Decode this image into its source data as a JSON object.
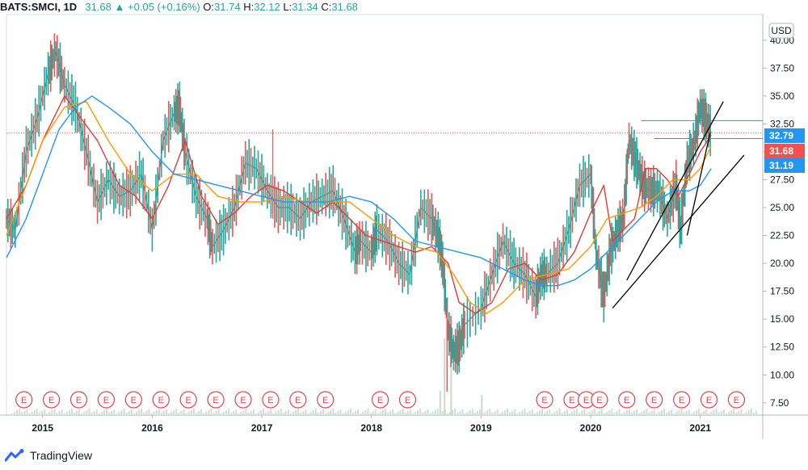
{
  "header": {
    "symbol": "BATS:SMCI, 1D",
    "last": "31.68",
    "change": "+0.05 (+0.16%)",
    "o_label": "O:",
    "o_value": "31.74",
    "h_label": "H:",
    "h_value": "32.12",
    "l_label": "L:",
    "l_value": "31.34",
    "c_label": "C:",
    "c_value": "31.68"
  },
  "footer": {
    "brand": "TradingView"
  },
  "chart_data": {
    "type": "line",
    "title": "BATS:SMCI, 1D",
    "currency": "USD",
    "y_ticks": [
      "40.00",
      "37.50",
      "35.00",
      "32.50",
      "30.00",
      "27.50",
      "25.00",
      "22.50",
      "20.00",
      "17.50",
      "15.00",
      "12.50",
      "10.00",
      "7.50"
    ],
    "ylim": [
      6.4,
      42.3
    ],
    "x_ticks": [
      "2015",
      "2016",
      "2017",
      "2018",
      "2019",
      "2020",
      "2021"
    ],
    "xlim": [
      2014.67,
      2021.57
    ],
    "price_tags": [
      {
        "label": "32.79",
        "value": 32.79,
        "color": "#2196f3"
      },
      {
        "label": "31.68",
        "value": 31.68,
        "color": "#ef5350"
      },
      {
        "label": "31.19",
        "value": 31.19,
        "color": "#2196f3"
      }
    ],
    "earnings_marker": "E",
    "earnings_dates": [
      2014.83,
      2015.08,
      2015.33,
      2015.58,
      2015.83,
      2016.08,
      2016.33,
      2016.58,
      2016.83,
      2017.08,
      2017.33,
      2017.58,
      2018.08,
      2018.33,
      2019.58,
      2019.83,
      2019.96,
      2020.08,
      2020.33,
      2020.58,
      2020.83,
      2021.08,
      2021.33
    ],
    "series": [
      {
        "name": "Price",
        "color": "#26a69a",
        "x": [
          2014.67,
          2014.75,
          2014.85,
          2014.95,
          2015.05,
          2015.12,
          2015.2,
          2015.3,
          2015.4,
          2015.5,
          2015.6,
          2015.7,
          2015.8,
          2015.9,
          2016.0,
          2016.1,
          2016.2,
          2016.25,
          2016.3,
          2016.4,
          2016.5,
          2016.55,
          2016.65,
          2016.75,
          2016.85,
          2016.95,
          2017.05,
          2017.15,
          2017.25,
          2017.35,
          2017.45,
          2017.55,
          2017.65,
          2017.75,
          2017.85,
          2017.9,
          2018.0,
          2018.05,
          2018.15,
          2018.25,
          2018.35,
          2018.45,
          2018.55,
          2018.62,
          2018.65,
          2018.7,
          2018.75,
          2018.8,
          2018.85,
          2019.0,
          2019.1,
          2019.2,
          2019.3,
          2019.4,
          2019.5,
          2019.55,
          2019.6,
          2019.7,
          2019.8,
          2019.9,
          2020.0,
          2020.05,
          2020.12,
          2020.18,
          2020.25,
          2020.3,
          2020.35,
          2020.42,
          2020.48,
          2020.55,
          2020.62,
          2020.7,
          2020.78,
          2020.82,
          2020.88,
          2020.95,
          2021.0,
          2021.05,
          2021.1
        ],
        "values": [
          24,
          23,
          30,
          33,
          37,
          39,
          36,
          34,
          30,
          25.5,
          27.5,
          26,
          26.5,
          28,
          23,
          31,
          33.5,
          34,
          30,
          26,
          24,
          21.5,
          23,
          25,
          29,
          28.5,
          26.5,
          25,
          25,
          24,
          25.5,
          26,
          26.5,
          24,
          21,
          22,
          21,
          23,
          22,
          20,
          19,
          25,
          24,
          22,
          20,
          14,
          12,
          12.5,
          14.5,
          16,
          19,
          22,
          20,
          19,
          17,
          19,
          19,
          20,
          23,
          27,
          28,
          21,
          17,
          21,
          23,
          24,
          31,
          29,
          27,
          26.5,
          26.5,
          24,
          27,
          23,
          29,
          31,
          34,
          33,
          31.68
        ]
      },
      {
        "name": "MA20",
        "color": "#e53935",
        "x": [
          2014.67,
          2014.85,
          2015.0,
          2015.2,
          2015.35,
          2015.5,
          2015.7,
          2015.85,
          2016.0,
          2016.15,
          2016.3,
          2016.45,
          2016.6,
          2016.75,
          2016.9,
          2017.05,
          2017.2,
          2017.35,
          2017.5,
          2017.65,
          2017.8,
          2017.95,
          2018.1,
          2018.25,
          2018.4,
          2018.55,
          2018.7,
          2018.8,
          2018.95,
          2019.1,
          2019.25,
          2019.4,
          2019.55,
          2019.7,
          2019.85,
          2020.0,
          2020.12,
          2020.2,
          2020.3,
          2020.4,
          2020.5,
          2020.6,
          2020.7,
          2020.8,
          2020.9,
          2021.0,
          2021.1
        ],
        "values": [
          24,
          27,
          31,
          35,
          33,
          31,
          27,
          26,
          24,
          27,
          31,
          26,
          23.5,
          24.5,
          26,
          27,
          26.5,
          25.5,
          24.5,
          25.5,
          24,
          22.5,
          22,
          21.5,
          21,
          21.5,
          20,
          16.5,
          15.5,
          16.5,
          19.5,
          20,
          18.5,
          19,
          21,
          24.5,
          27,
          22,
          23,
          24,
          28.5,
          28.5,
          27.5,
          26,
          28,
          30,
          31.5
        ]
      },
      {
        "name": "MA50",
        "color": "#ff9800",
        "x": [
          2014.67,
          2014.85,
          2015.0,
          2015.2,
          2015.4,
          2015.6,
          2015.8,
          2016.0,
          2016.2,
          2016.4,
          2016.6,
          2016.8,
          2017.0,
          2017.2,
          2017.4,
          2017.6,
          2017.8,
          2018.0,
          2018.2,
          2018.4,
          2018.6,
          2018.75,
          2018.9,
          2019.05,
          2019.2,
          2019.4,
          2019.6,
          2019.8,
          2020.0,
          2020.15,
          2020.3,
          2020.45,
          2020.6,
          2020.75,
          2020.9,
          2021.0,
          2021.1
        ],
        "values": [
          22.5,
          27,
          31,
          34,
          34.5,
          31,
          28,
          26.5,
          28,
          28,
          26,
          25.5,
          25.5,
          26,
          25.5,
          25.5,
          25.5,
          24,
          22.5,
          21.5,
          21,
          19,
          16.5,
          15.5,
          16.5,
          18.5,
          19,
          19.5,
          21.5,
          24,
          24.5,
          25,
          26,
          27.5,
          27.5,
          28.5,
          30.5
        ]
      },
      {
        "name": "MA200",
        "color": "#2196f3",
        "x": [
          2014.67,
          2014.85,
          2015.0,
          2015.15,
          2015.3,
          2015.45,
          2015.6,
          2015.8,
          2016.0,
          2016.2,
          2016.4,
          2016.6,
          2016.8,
          2017.0,
          2017.2,
          2017.4,
          2017.6,
          2017.8,
          2018.0,
          2018.2,
          2018.4,
          2018.6,
          2018.8,
          2019.0,
          2019.2,
          2019.4,
          2019.55,
          2019.7,
          2019.85,
          2020.0,
          2020.15,
          2020.3,
          2020.45,
          2020.6,
          2020.75,
          2020.9,
          2021.0,
          2021.1
        ],
        "values": [
          20.5,
          24,
          28,
          32,
          34,
          35,
          34,
          32.5,
          30,
          28,
          27.5,
          27,
          26.5,
          26,
          25.5,
          25.5,
          25.5,
          26,
          25.5,
          24,
          22,
          21.5,
          21,
          20.5,
          19.5,
          18.5,
          18,
          18,
          18.5,
          19.5,
          21,
          22.5,
          24,
          25.5,
          26.5,
          26.5,
          27,
          28.5
        ]
      },
      {
        "name": "Trendline",
        "color": "#000000",
        "x": [
          2020.2,
          2021.4
        ],
        "values": [
          16,
          29.7
        ]
      },
      {
        "name": "Trendline",
        "color": "#000000",
        "x": [
          2020.33,
          2021.21
        ],
        "values": [
          18.5,
          34.5
        ]
      },
      {
        "name": "Trendline",
        "color": "#000000",
        "x": [
          2020.88,
          2021.09
        ],
        "values": [
          22.5,
          31.7
        ]
      }
    ]
  }
}
